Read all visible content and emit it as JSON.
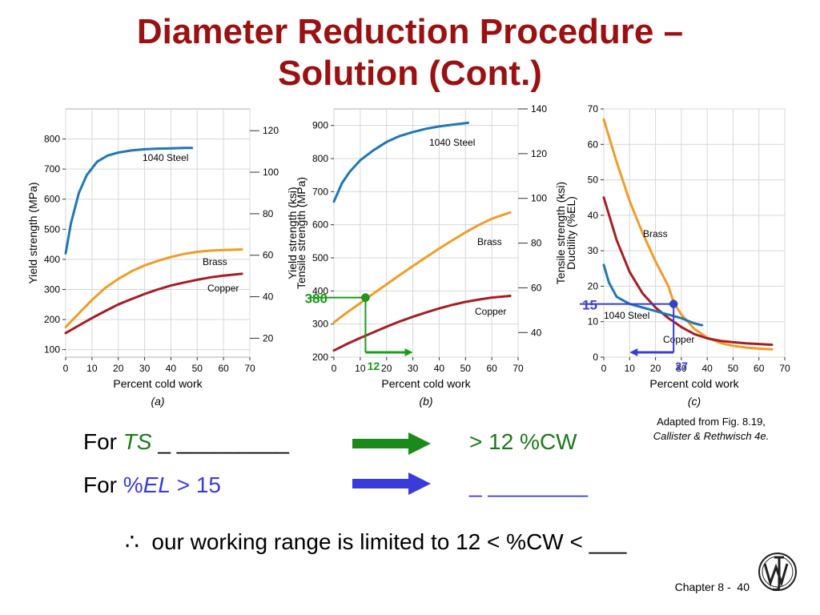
{
  "title": {
    "line1": "Diameter Reduction Procedure –",
    "line2": "Solution (Cont.)"
  },
  "caption": {
    "line1": "Adapted from Fig. 8.19,",
    "line2": "Callister & Rethwisch 4e."
  },
  "rows": {
    "ts": {
      "prefix": "For ",
      "var": "TS",
      "blank": " _ _________",
      "result": "> 12 %CW"
    },
    "el": {
      "prefix": "For ",
      "var_pct": "%",
      "var": "EL",
      "cond": " > 15",
      "result": "_ ________"
    }
  },
  "conclusion": {
    "symbol": "∴",
    "text": "our working range is limited to 12 < %CW < ___"
  },
  "footer": {
    "chapter": "Chapter 8 -",
    "page": "40"
  },
  "colors": {
    "steel": "#1f77b4",
    "brass": "#f29b27",
    "copper": "#a51e22",
    "green": "#1a9b1a",
    "blue": "#3b3bdb",
    "title": "#9b1111"
  },
  "chart_data": [
    {
      "type": "line",
      "subtitle": "(a)",
      "xlabel": "Percent cold work",
      "ylabel": "Yield strength (MPa)",
      "ylabel_right": "Yield strength (ksi)",
      "xlim": [
        0,
        70
      ],
      "ylim": [
        75,
        900
      ],
      "ylim_right": [
        10.9,
        130.5
      ],
      "xticks": [
        0,
        10,
        20,
        30,
        40,
        50,
        60,
        70
      ],
      "yticks": [
        100,
        200,
        300,
        400,
        500,
        600,
        700,
        800
      ],
      "yticks_right": [
        20,
        40,
        60,
        80,
        100,
        120
      ],
      "series": [
        {
          "name": "1040 Steel",
          "color_key": "steel",
          "x": [
            0,
            2,
            5,
            8,
            12,
            16,
            20,
            25,
            30,
            35,
            40,
            45,
            48
          ],
          "y": [
            420,
            520,
            620,
            680,
            725,
            745,
            755,
            762,
            766,
            768,
            769,
            770,
            770
          ]
        },
        {
          "name": "Brass",
          "color_key": "brass",
          "x": [
            0,
            5,
            10,
            15,
            20,
            25,
            30,
            35,
            40,
            45,
            50,
            55,
            60,
            67
          ],
          "y": [
            175,
            220,
            265,
            305,
            335,
            360,
            380,
            395,
            408,
            418,
            425,
            429,
            431,
            433
          ]
        },
        {
          "name": "Copper",
          "color_key": "copper",
          "x": [
            0,
            5,
            10,
            15,
            20,
            25,
            30,
            35,
            40,
            45,
            50,
            55,
            60,
            67
          ],
          "y": [
            155,
            180,
            205,
            228,
            250,
            268,
            285,
            300,
            313,
            323,
            332,
            340,
            346,
            352
          ]
        }
      ]
    },
    {
      "type": "line",
      "subtitle": "(b)",
      "xlabel": "Percent cold work",
      "ylabel": "Tensile strength (MPa)",
      "ylabel_right": "Tensile strength (ksi)",
      "xlim": [
        0,
        70
      ],
      "ylim": [
        200,
        950
      ],
      "ylim_right": [
        29,
        140
      ],
      "xticks": [
        0,
        10,
        20,
        30,
        40,
        50,
        60,
        70
      ],
      "yticks": [
        200,
        300,
        400,
        500,
        600,
        700,
        800,
        900
      ],
      "yticks_right": [
        40,
        60,
        80,
        100,
        120,
        140
      ],
      "series": [
        {
          "name": "1040 Steel",
          "color_key": "steel",
          "x": [
            0,
            3,
            6,
            10,
            15,
            20,
            25,
            30,
            35,
            40,
            45,
            51
          ],
          "y": [
            670,
            725,
            760,
            795,
            825,
            850,
            868,
            880,
            890,
            897,
            902,
            908
          ]
        },
        {
          "name": "Brass",
          "color_key": "brass",
          "x": [
            0,
            5,
            10,
            15,
            20,
            25,
            30,
            35,
            40,
            45,
            50,
            55,
            60,
            65,
            67
          ],
          "y": [
            305,
            335,
            363,
            392,
            420,
            448,
            475,
            502,
            528,
            553,
            577,
            599,
            618,
            632,
            637
          ]
        },
        {
          "name": "Copper",
          "color_key": "copper",
          "x": [
            0,
            5,
            10,
            15,
            20,
            25,
            30,
            35,
            40,
            45,
            50,
            55,
            60,
            67
          ],
          "y": [
            220,
            240,
            258,
            275,
            292,
            308,
            322,
            335,
            347,
            358,
            367,
            374,
            380,
            385
          ]
        }
      ],
      "annotation": {
        "x": 12,
        "y": 380,
        "label_y": "380",
        "label_x": "12",
        "arrow_to_x": 30,
        "color_key": "green"
      }
    },
    {
      "type": "line",
      "subtitle": "(c)",
      "xlabel": "Percent cold work",
      "ylabel": "Ductility (%EL)",
      "xlim": [
        0,
        70
      ],
      "ylim": [
        0,
        70
      ],
      "xticks": [
        0,
        10,
        20,
        30,
        40,
        50,
        60,
        70
      ],
      "yticks": [
        0,
        10,
        20,
        30,
        40,
        50,
        60,
        70
      ],
      "series": [
        {
          "name": "Brass",
          "color_key": "brass",
          "x": [
            0,
            5,
            10,
            15,
            20,
            25,
            27,
            30,
            35,
            40,
            45,
            50,
            55,
            60,
            65
          ],
          "y": [
            67,
            55,
            44,
            35,
            27,
            20,
            15.5,
            12,
            8,
            5.5,
            4,
            3.2,
            2.7,
            2.4,
            2.2
          ]
        },
        {
          "name": "Copper",
          "color_key": "copper",
          "x": [
            0,
            5,
            10,
            15,
            20,
            25,
            30,
            35,
            40,
            45,
            50,
            55,
            60,
            65
          ],
          "y": [
            45,
            33,
            24,
            18,
            14,
            11,
            8.5,
            6.5,
            5.3,
            4.6,
            4.2,
            3.9,
            3.7,
            3.5
          ]
        },
        {
          "name": "1040 Steel",
          "color_key": "steel",
          "x": [
            0,
            2,
            5,
            10,
            15,
            20,
            25,
            30,
            35,
            38
          ],
          "y": [
            26,
            21,
            17,
            15,
            14,
            13,
            12,
            11,
            9.5,
            9
          ]
        }
      ],
      "annotation": {
        "x": 27,
        "y": 15,
        "label_y": "15",
        "label_x": "27",
        "arrow_to_x": 10,
        "color_key": "blue"
      }
    }
  ]
}
